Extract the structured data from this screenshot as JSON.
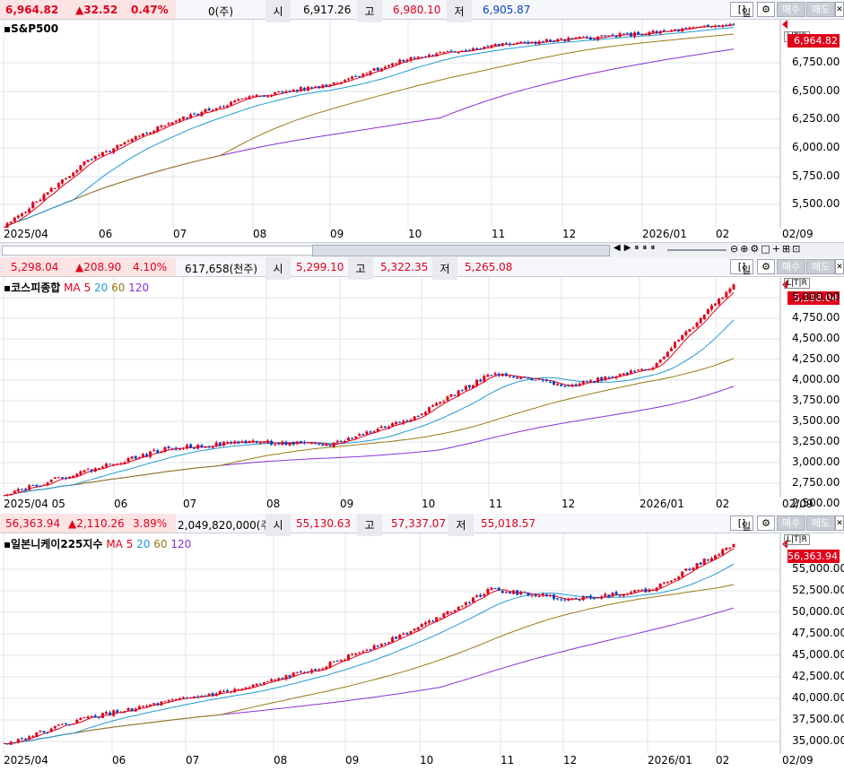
{
  "colors": {
    "up": "#e0001b",
    "down": "#0046c8",
    "ma5": "#e0001b",
    "ma20": "#1f9ad6",
    "ma60": "#9a7a12",
    "ma120": "#8b2fd6",
    "grid": "#e3e5ea"
  },
  "icons": [
    "gear-icon",
    "close-icon",
    "zoom-in-icon",
    "zoom-out-icon",
    "settings-icon",
    "crosshair-icon",
    "expand-icon"
  ],
  "panels": [
    {
      "id": "sp500",
      "price": "6,964.82",
      "change": "▲32.52",
      "pct": "0.47%",
      "volume": "0(주)",
      "open_label": "시",
      "open": "6,917.26",
      "high_label": "고",
      "high": "6,980.10",
      "low_label": "저",
      "low": "6,905.87",
      "period": "일",
      "buy": "매수",
      "sell": "매도",
      "title": "S&P500",
      "ma_labels": [],
      "last_tag": "6,964.82",
      "y_ticks": [
        "6,750.00",
        "6,500.00",
        "6,250.00",
        "6,000.00",
        "5,750.00",
        "5,500.00"
      ],
      "x_ticks": [
        "2025/04",
        "06",
        "07",
        "08",
        "09",
        "10",
        "11",
        "12",
        "2026/01",
        "02",
        "02/09"
      ],
      "chart_data": {
        "type": "line",
        "title": "S&P500",
        "x": [
          "2025/04",
          "06",
          "07",
          "08",
          "09",
          "10",
          "11",
          "12",
          "2026/01",
          "02"
        ],
        "series": [
          {
            "values": [
              5400,
              5900,
              6200,
              6400,
              6500,
              6700,
              6800,
              6850,
              6900,
              6964.82
            ]
          }
        ],
        "ylim": [
          5400,
          7000
        ]
      }
    },
    {
      "id": "kospi",
      "price": "5,298.04",
      "change": "▲208.90",
      "pct": "4.10%",
      "volume": "617,658(천주)",
      "open_label": "시",
      "open": "5,299.10",
      "high_label": "고",
      "high": "5,322.35",
      "low_label": "저",
      "low": "5,265.08",
      "period": "일",
      "buy": "매수",
      "sell": "매도",
      "title": "코스피종합",
      "ma_title": "MA",
      "ma_labels": [
        "5",
        "20",
        "60",
        "120"
      ],
      "last_tag": "5,298.04",
      "y_ticks": [
        "5,000.00",
        "4,750.00",
        "4,500.00",
        "4,250.00",
        "4,000.00",
        "3,750.00",
        "3,500.00",
        "3,250.00",
        "3,000.00",
        "2,750.00",
        "2,500.00"
      ],
      "x_ticks": [
        "2025/04 05",
        "06",
        "07",
        "08",
        "09",
        "10",
        "11",
        "12",
        "2026/01",
        "02",
        "02/09"
      ],
      "chart_data": {
        "type": "line",
        "title": "코스피종합",
        "x": [
          "2025/04",
          "06",
          "07",
          "08",
          "09",
          "10",
          "11",
          "12",
          "2026/01",
          "02"
        ],
        "series": [
          {
            "values": [
              2500,
              2800,
              3100,
              3200,
              3150,
              3500,
              4100,
              3950,
              4200,
              5298.04
            ]
          }
        ],
        "ylim": [
          2450,
          5400
        ]
      }
    },
    {
      "id": "nikkei",
      "price": "56,363.94",
      "change": "▲2,110.26",
      "pct": "3.89%",
      "volume": "2,049,820,000(주)",
      "open_label": "시",
      "open": "55,130.63",
      "high_label": "고",
      "high": "57,337.07",
      "low_label": "저",
      "low": "55,018.57",
      "period": "일",
      "buy": "매수",
      "sell": "매도",
      "title": "일본니케이225지수",
      "ma_title": "MA",
      "ma_labels": [
        "5",
        "20",
        "60",
        "120"
      ],
      "last_tag": "56,363.94",
      "y_ticks": [
        "55,000.00",
        "52,500.00",
        "50,000.00",
        "47,500.00",
        "45,000.00",
        "42,500.00",
        "40,000.00",
        "37,500.00",
        "35,000.00"
      ],
      "x_ticks": [
        "2025/04",
        "06",
        "07",
        "08",
        "09",
        "10",
        "11",
        "12",
        "2026/01",
        "02",
        "02/09"
      ],
      "chart_data": {
        "type": "line",
        "title": "일본니케이225지수",
        "x": [
          "2025/04",
          "06",
          "07",
          "08",
          "09",
          "10",
          "11",
          "12",
          "2026/01",
          "02"
        ],
        "series": [
          {
            "values": [
              35000,
              37800,
              39500,
              41000,
              43500,
              47000,
              51500,
              50500,
              51500,
              56363.94
            ]
          }
        ],
        "ylim": [
          34000,
          57500
        ]
      }
    }
  ]
}
